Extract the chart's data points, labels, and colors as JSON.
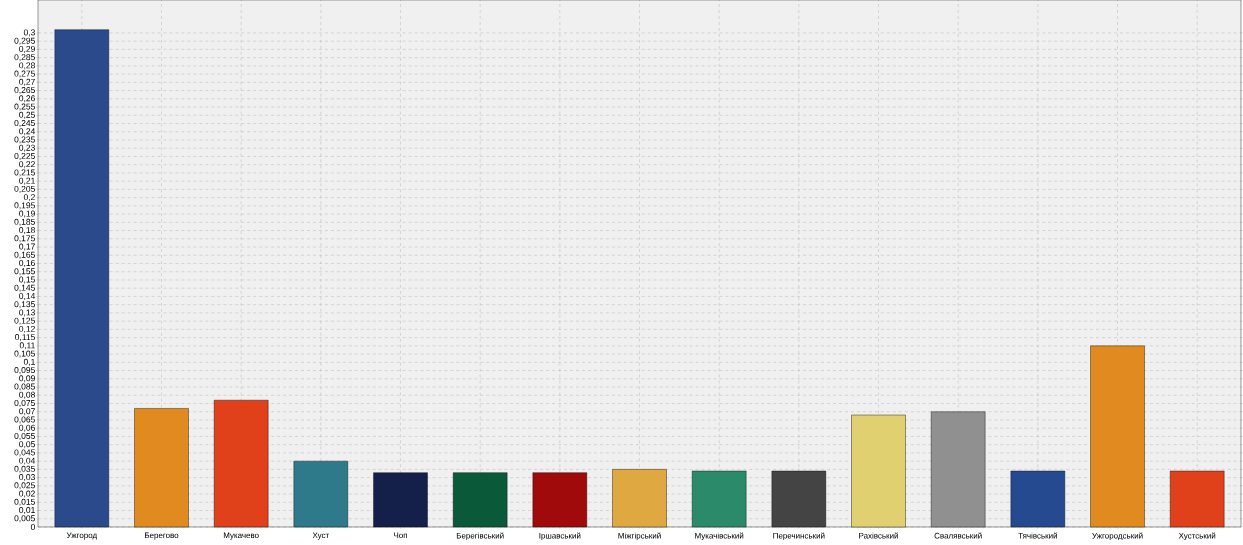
{
  "chart_data": {
    "type": "bar",
    "categories": [
      "Ужгород",
      "Берегово",
      "Мукачево",
      "Хуст",
      "Чоп",
      "Берегівський",
      "Іршавський",
      "Міжгірський",
      "Мукачівський",
      "Перечинський",
      "Рахівський",
      "Свалявський",
      "Тячівський",
      "Ужгородський",
      "Хустський"
    ],
    "values": [
      0.302,
      0.072,
      0.077,
      0.04,
      0.033,
      0.033,
      0.033,
      0.035,
      0.034,
      0.034,
      0.068,
      0.07,
      0.034,
      0.11,
      0.034
    ],
    "colors": [
      "#2a4a8c",
      "#e08a20",
      "#e0401a",
      "#2e7a8a",
      "#14204a",
      "#0a5a3a",
      "#a00a0a",
      "#e0a840",
      "#2a8a6a",
      "#444444",
      "#e0d070",
      "#909090",
      "#264a90",
      "#e08a20",
      "#e0401a"
    ],
    "ylim": [
      0,
      0.32
    ],
    "yticks": [
      {
        "value": 0,
        "label": "0"
      },
      {
        "value": 0.005,
        "label": "0,005"
      },
      {
        "value": 0.01,
        "label": "0,01"
      },
      {
        "value": 0.015,
        "label": "0,015"
      },
      {
        "value": 0.02,
        "label": "0,02"
      },
      {
        "value": 0.025,
        "label": "0,025"
      },
      {
        "value": 0.03,
        "label": "0,03"
      },
      {
        "value": 0.035,
        "label": "0,035"
      },
      {
        "value": 0.04,
        "label": "0,04"
      },
      {
        "value": 0.045,
        "label": "0,045"
      },
      {
        "value": 0.05,
        "label": "0,05"
      },
      {
        "value": 0.055,
        "label": "0,055"
      },
      {
        "value": 0.06,
        "label": "0,06"
      },
      {
        "value": 0.065,
        "label": "0,065"
      },
      {
        "value": 0.07,
        "label": "0,07"
      },
      {
        "value": 0.075,
        "label": "0,075"
      },
      {
        "value": 0.08,
        "label": "0,08"
      },
      {
        "value": 0.085,
        "label": "0,085"
      },
      {
        "value": 0.09,
        "label": "0,09"
      },
      {
        "value": 0.095,
        "label": "0,095"
      },
      {
        "value": 0.1,
        "label": "0,1"
      },
      {
        "value": 0.105,
        "label": "0,105"
      },
      {
        "value": 0.11,
        "label": "0,11"
      },
      {
        "value": 0.115,
        "label": "0,115"
      },
      {
        "value": 0.12,
        "label": "0,12"
      },
      {
        "value": 0.125,
        "label": "0,125"
      },
      {
        "value": 0.13,
        "label": "0,13"
      },
      {
        "value": 0.135,
        "label": "0,135"
      },
      {
        "value": 0.14,
        "label": "0,14"
      },
      {
        "value": 0.145,
        "label": "0,145"
      },
      {
        "value": 0.15,
        "label": "0,15"
      },
      {
        "value": 0.155,
        "label": "0,155"
      },
      {
        "value": 0.16,
        "label": "0,16"
      },
      {
        "value": 0.165,
        "label": "0,165"
      },
      {
        "value": 0.17,
        "label": "0,17"
      },
      {
        "value": 0.175,
        "label": "0,175"
      },
      {
        "value": 0.18,
        "label": "0,18"
      },
      {
        "value": 0.185,
        "label": "0,185"
      },
      {
        "value": 0.19,
        "label": "0,19"
      },
      {
        "value": 0.195,
        "label": "0,195"
      },
      {
        "value": 0.2,
        "label": "0,2"
      },
      {
        "value": 0.205,
        "label": "0,205"
      },
      {
        "value": 0.21,
        "label": "0,21"
      },
      {
        "value": 0.215,
        "label": "0,215"
      },
      {
        "value": 0.22,
        "label": "0,22"
      },
      {
        "value": 0.225,
        "label": "0,225"
      },
      {
        "value": 0.23,
        "label": "0,23"
      },
      {
        "value": 0.235,
        "label": "0,235"
      },
      {
        "value": 0.24,
        "label": "0,24"
      },
      {
        "value": 0.245,
        "label": "0,245"
      },
      {
        "value": 0.25,
        "label": "0,25"
      },
      {
        "value": 0.255,
        "label": "0,255"
      },
      {
        "value": 0.26,
        "label": "0,26"
      },
      {
        "value": 0.265,
        "label": "0,265"
      },
      {
        "value": 0.27,
        "label": "0,27"
      },
      {
        "value": 0.275,
        "label": "0,275"
      },
      {
        "value": 0.28,
        "label": "0,28"
      },
      {
        "value": 0.285,
        "label": "0,285"
      },
      {
        "value": 0.29,
        "label": "0,29"
      },
      {
        "value": 0.295,
        "label": "0,295"
      },
      {
        "value": 0.3,
        "label": "0,3"
      }
    ],
    "grid": true
  }
}
